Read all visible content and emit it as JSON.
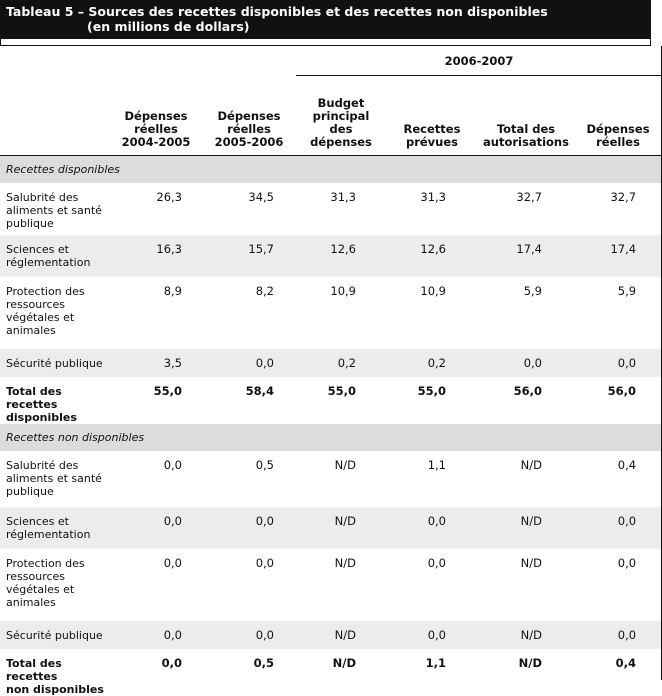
{
  "title": {
    "line1": "Tableau 5 – Sources des recettes disponibles et des recettes non disponibles",
    "line2": "(en millions de dollars)"
  },
  "period_header": "2006-2007",
  "columns": [
    "Dépenses réelles 2004-2005",
    "Dépenses réelles 2005-2006",
    "Budget principal des dépenses",
    "Recettes prévues",
    "Total des autorisations",
    "Dépenses réelles"
  ],
  "column_lines": [
    [
      "Dépenses",
      "réelles",
      "2004-2005"
    ],
    [
      "Dépenses",
      "réelles",
      "2005-2006"
    ],
    [
      "Budget",
      "principal",
      "des",
      "dépenses"
    ],
    [
      "Recettes",
      "prévues"
    ],
    [
      "Total des",
      "autorisations"
    ],
    [
      "Dépenses",
      "réelles"
    ]
  ],
  "sections": [
    {
      "name": "Recettes disponibles",
      "rows": [
        {
          "label_lines": [
            "Salubrité des",
            "aliments et santé",
            "publique"
          ],
          "values": [
            "26,3",
            "34,5",
            "31,3",
            "31,3",
            "32,7",
            "32,7"
          ],
          "height": 52
        },
        {
          "label_lines": [
            "Sciences et",
            "réglementation"
          ],
          "values": [
            "16,3",
            "15,7",
            "12,6",
            "12,6",
            "17,4",
            "17,4"
          ],
          "height": 42
        },
        {
          "label_lines": [
            "Protection des",
            "ressources",
            "végétales et",
            "animales"
          ],
          "values": [
            "8,9",
            "8,2",
            "10,9",
            "10,9",
            "5,9",
            "5,9"
          ],
          "height": 72
        },
        {
          "label_lines": [
            "Sécurité publique"
          ],
          "values": [
            "3,5",
            "0,0",
            "0,2",
            "0,2",
            "0,0",
            "0,0"
          ],
          "height": 28
        },
        {
          "label_lines": [
            "Total des recettes",
            "disponibles"
          ],
          "values": [
            "55,0",
            "58,4",
            "55,0",
            "55,0",
            "56,0",
            "56,0"
          ],
          "height": 44,
          "total": true
        }
      ]
    },
    {
      "name": "Recettes non disponibles",
      "rows": [
        {
          "label_lines": [
            "Salubrité des",
            "aliments et santé",
            "publique"
          ],
          "values": [
            "0,0",
            "0,5",
            "N/D",
            "1,1",
            "N/D",
            "0,4"
          ],
          "height": 56
        },
        {
          "label_lines": [
            "Sciences et",
            "réglementation"
          ],
          "values": [
            "0,0",
            "0,0",
            "N/D",
            "0,0",
            "N/D",
            "0,0"
          ],
          "height": 42
        },
        {
          "label_lines": [
            "Protection des",
            "ressources",
            "végétales et",
            "animales"
          ],
          "values": [
            "0,0",
            "0,0",
            "N/D",
            "0,0",
            "N/D",
            "0,0"
          ],
          "height": 72
        },
        {
          "label_lines": [
            "Sécurité publique"
          ],
          "values": [
            "0,0",
            "0,0",
            "N/D",
            "0,0",
            "N/D",
            "0,0"
          ],
          "height": 28
        },
        {
          "label_lines": [
            "Total des recettes",
            "non disponibles"
          ],
          "values": [
            "0,0",
            "0,5",
            "N/D",
            "1,1",
            "N/D",
            "0,4"
          ],
          "height": 40,
          "total": true
        }
      ]
    }
  ]
}
